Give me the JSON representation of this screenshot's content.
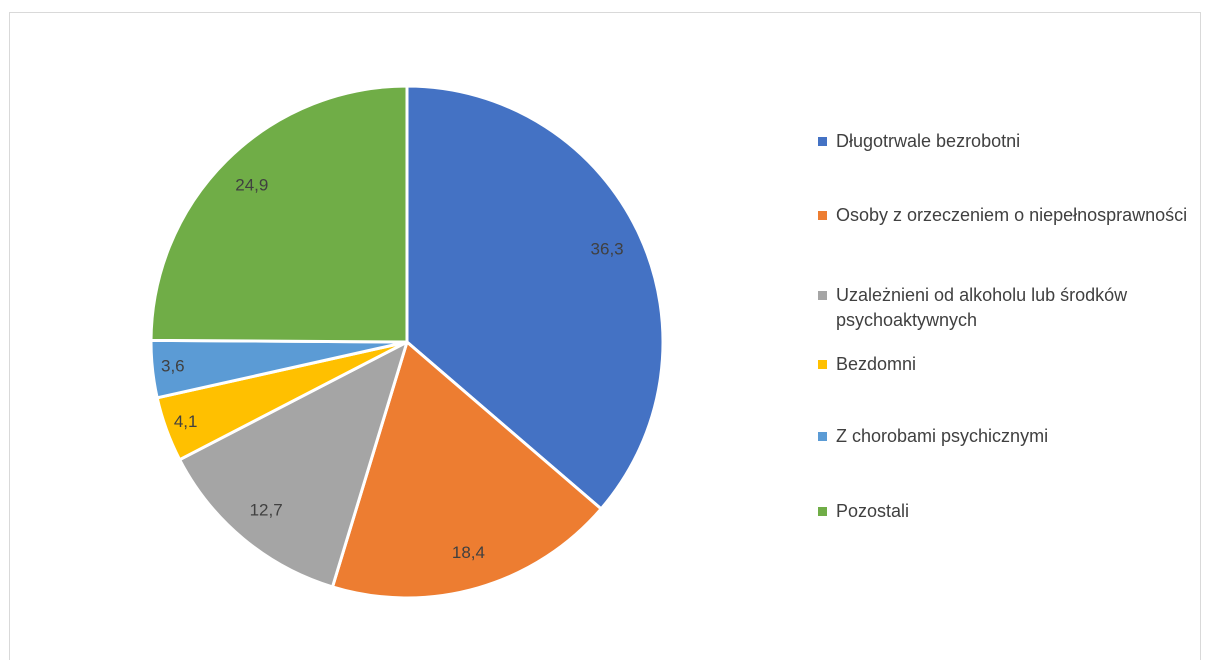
{
  "chart_data": {
    "type": "pie",
    "categories": [
      "Długotrwale bezrobotni",
      "Osoby z orzeczeniem o niepełnosprawności",
      "Uzależnieni od alkoholu lub środków psychoaktywnych",
      "Bezdomni",
      "Z chorobami psychicznymi",
      "Pozostali"
    ],
    "values": [
      36.3,
      18.4,
      12.7,
      4.1,
      3.6,
      24.9
    ],
    "value_labels": [
      "36,3",
      "18,4",
      "12,7",
      "4,1",
      "3,6",
      "24,9"
    ],
    "colors": [
      "#4472c4",
      "#ed7d31",
      "#a5a5a5",
      "#ffc000",
      "#5b9bd5",
      "#70ad47"
    ],
    "legend": "right"
  }
}
